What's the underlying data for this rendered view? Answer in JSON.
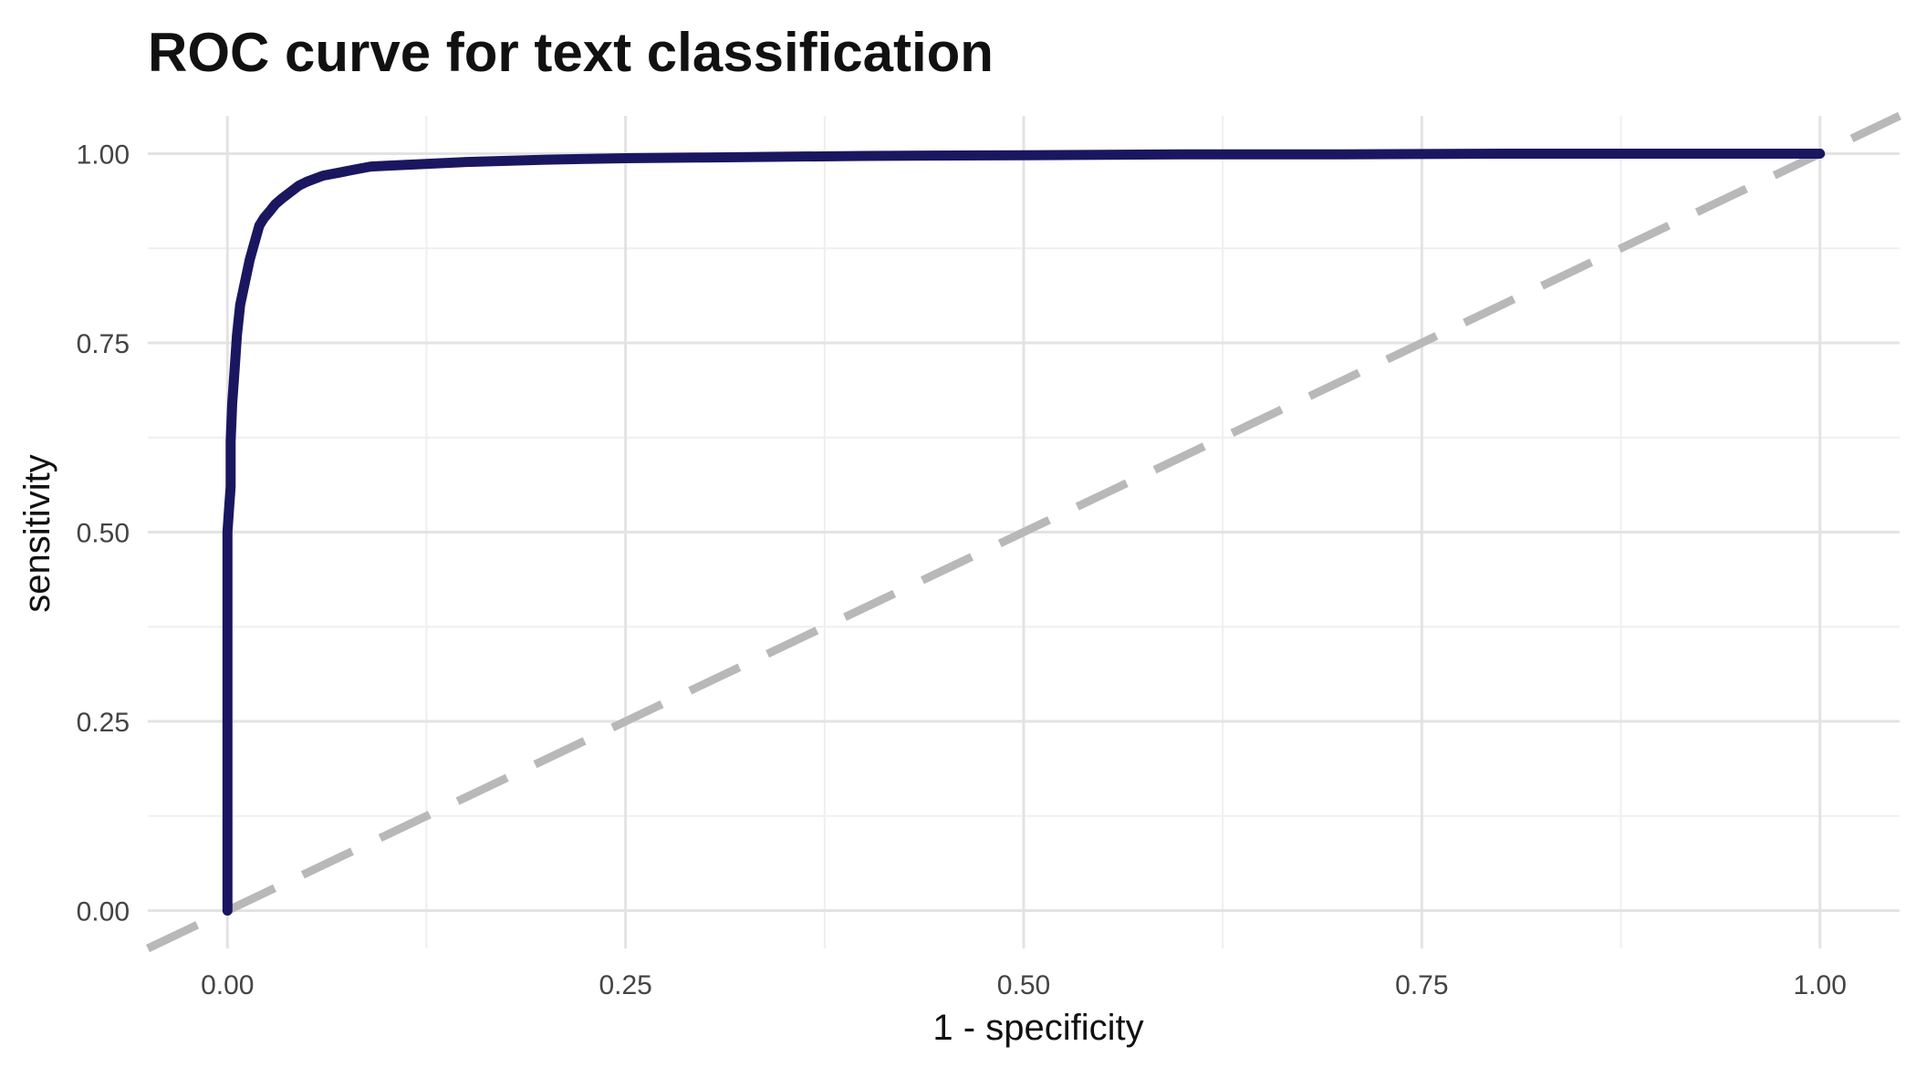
{
  "chart_data": {
    "type": "line",
    "title": "ROC curve for text classification",
    "xlabel": "1 - specificity",
    "ylabel": "sensitivity",
    "xlim": [
      -0.05,
      1.05
    ],
    "ylim": [
      -0.05,
      1.05
    ],
    "x_ticks": [
      "0.00",
      "0.25",
      "0.50",
      "0.75",
      "1.00"
    ],
    "y_ticks": [
      "0.00",
      "0.25",
      "0.50",
      "0.75",
      "1.00"
    ],
    "grid": true,
    "reference_line": {
      "style": "dashed",
      "color": "#b8b8b8",
      "slope": 1,
      "intercept": 0
    },
    "series": [
      {
        "color": "#1a1760",
        "x": [
          0,
          0,
          0,
          0.001,
          0.002,
          0.002,
          0.003,
          0.004,
          0.005,
          0.006,
          0.008,
          0.01,
          0.012,
          0.014,
          0.016,
          0.018,
          0.02,
          0.023,
          0.027,
          0.03,
          0.035,
          0.04,
          0.045,
          0.05,
          0.055,
          0.06,
          0.07,
          0.08,
          0.09,
          0.1,
          0.12,
          0.15,
          0.2,
          0.25,
          0.3,
          0.4,
          0.5,
          0.6,
          0.7,
          0.8,
          0.9,
          1.0
        ],
        "y": [
          0,
          0.3,
          0.5,
          0.53,
          0.56,
          0.62,
          0.67,
          0.7,
          0.73,
          0.76,
          0.8,
          0.82,
          0.84,
          0.86,
          0.875,
          0.89,
          0.905,
          0.915,
          0.925,
          0.933,
          0.942,
          0.95,
          0.958,
          0.963,
          0.967,
          0.971,
          0.975,
          0.979,
          0.983,
          0.984,
          0.986,
          0.989,
          0.992,
          0.994,
          0.995,
          0.997,
          0.998,
          0.999,
          0.999,
          1.0,
          1.0,
          1.0
        ]
      }
    ]
  }
}
